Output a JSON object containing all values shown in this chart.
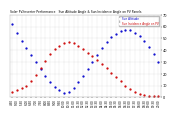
{
  "title": "Solar PV/Inverter Performance   Sun Altitude Angle & Sun Incidence Angle on PV Panels",
  "bg_color": "#ffffff",
  "plot_bg_color": "#ffffff",
  "grid_color": "#aaaaaa",
  "text_color": "#000000",
  "x_labels": [
    "4:30",
    "5:00",
    "5:30",
    "6:00",
    "6:30",
    "7:00",
    "7:30",
    "8:00",
    "8:30",
    "9:00",
    "9:30",
    "10:00",
    "10:30",
    "11:00",
    "11:30",
    "12:00",
    "12:30",
    "13:00",
    "13:30",
    "14:00",
    "14:30",
    "15:00",
    "15:30",
    "16:00",
    "16:30",
    "17:00",
    "17:30",
    "18:00",
    "18:30",
    "19:00",
    "19:30",
    "20:00"
  ],
  "altitude_x": [
    0,
    1,
    2,
    3,
    4,
    5,
    6,
    7,
    8,
    9,
    10,
    11,
    12,
    13,
    14,
    15,
    16,
    17,
    18,
    19,
    20,
    21,
    22,
    23,
    24,
    25,
    26,
    27,
    28,
    29,
    30,
    31
  ],
  "altitude_y": [
    62,
    55,
    48,
    42,
    36,
    30,
    24,
    18,
    13,
    9,
    6,
    4,
    5,
    8,
    13,
    18,
    24,
    30,
    36,
    42,
    47,
    51,
    54,
    56,
    57,
    57,
    55,
    52,
    48,
    43,
    37,
    30
  ],
  "incidence_x": [
    0,
    1,
    2,
    3,
    4,
    5,
    6,
    7,
    8,
    9,
    10,
    11,
    12,
    13,
    14,
    15,
    16,
    17,
    18,
    19,
    20,
    21,
    22,
    23,
    24,
    25,
    26,
    27,
    28,
    29,
    30,
    31
  ],
  "incidence_y": [
    5,
    6,
    8,
    10,
    14,
    19,
    25,
    31,
    37,
    41,
    44,
    46,
    47,
    46,
    44,
    41,
    38,
    35,
    32,
    28,
    25,
    21,
    17,
    14,
    10,
    7,
    5,
    3,
    2,
    1,
    1,
    1
  ],
  "altitude_color": "#0000cc",
  "incidence_color": "#cc0000",
  "ylim": [
    0,
    70
  ],
  "yticks": [
    0,
    10,
    20,
    30,
    40,
    50,
    60,
    70
  ],
  "altitude_label": "Sun Altitude",
  "incidence_label": "Sun Incidence Angle on PV"
}
